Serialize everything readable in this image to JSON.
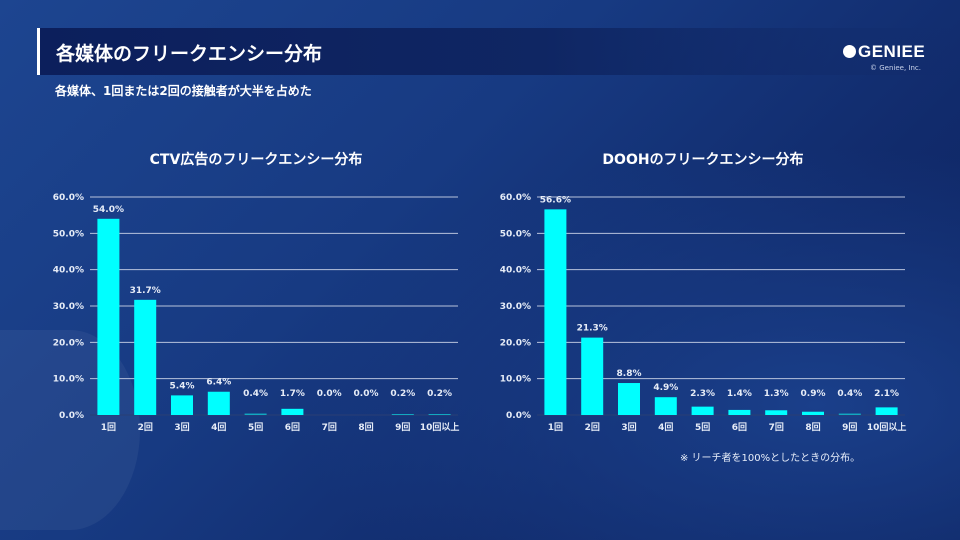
{
  "header": {
    "title": "各媒体のフリークエンシー分布",
    "subtitle": "各媒体、1回または2回の接触者が大半を占めた",
    "logo": "GENIEE",
    "copyright": "© Geniee, Inc."
  },
  "footnote": "※ リーチ者を100%としたときの分布。",
  "colors": {
    "bar": "#00ffff",
    "grid": "#b8c3dc"
  },
  "chart_data": [
    {
      "type": "bar",
      "title": "CTV広告のフリークエンシー分布",
      "categories": [
        "1回",
        "2回",
        "3回",
        "4回",
        "5回",
        "6回",
        "7回",
        "8回",
        "9回",
        "10回以上"
      ],
      "values": [
        54.0,
        31.7,
        5.4,
        6.4,
        0.4,
        1.7,
        0.0,
        0.0,
        0.2,
        0.2
      ],
      "labels": [
        "54.0%",
        "31.7%",
        "5.4%",
        "6.4%",
        "0.4%",
        "1.7%",
        "0.0%",
        "0.0%",
        "0.2%",
        "0.2%"
      ],
      "yticks": [
        "0.0%",
        "10.0%",
        "20.0%",
        "30.0%",
        "40.0%",
        "50.0%",
        "60.0%"
      ],
      "ylim": [
        0,
        60
      ],
      "grid": true
    },
    {
      "type": "bar",
      "title": "DOOHのフリークエンシー分布",
      "categories": [
        "1回",
        "2回",
        "3回",
        "4回",
        "5回",
        "6回",
        "7回",
        "8回",
        "9回",
        "10回以上"
      ],
      "values": [
        56.6,
        21.3,
        8.8,
        4.9,
        2.3,
        1.4,
        1.3,
        0.9,
        0.4,
        2.1
      ],
      "labels": [
        "56.6%",
        "21.3%",
        "8.8%",
        "4.9%",
        "2.3%",
        "1.4%",
        "1.3%",
        "0.9%",
        "0.4%",
        "2.1%"
      ],
      "yticks": [
        "0.0%",
        "10.0%",
        "20.0%",
        "30.0%",
        "40.0%",
        "50.0%",
        "60.0%"
      ],
      "ylim": [
        0,
        60
      ],
      "grid": true
    }
  ]
}
